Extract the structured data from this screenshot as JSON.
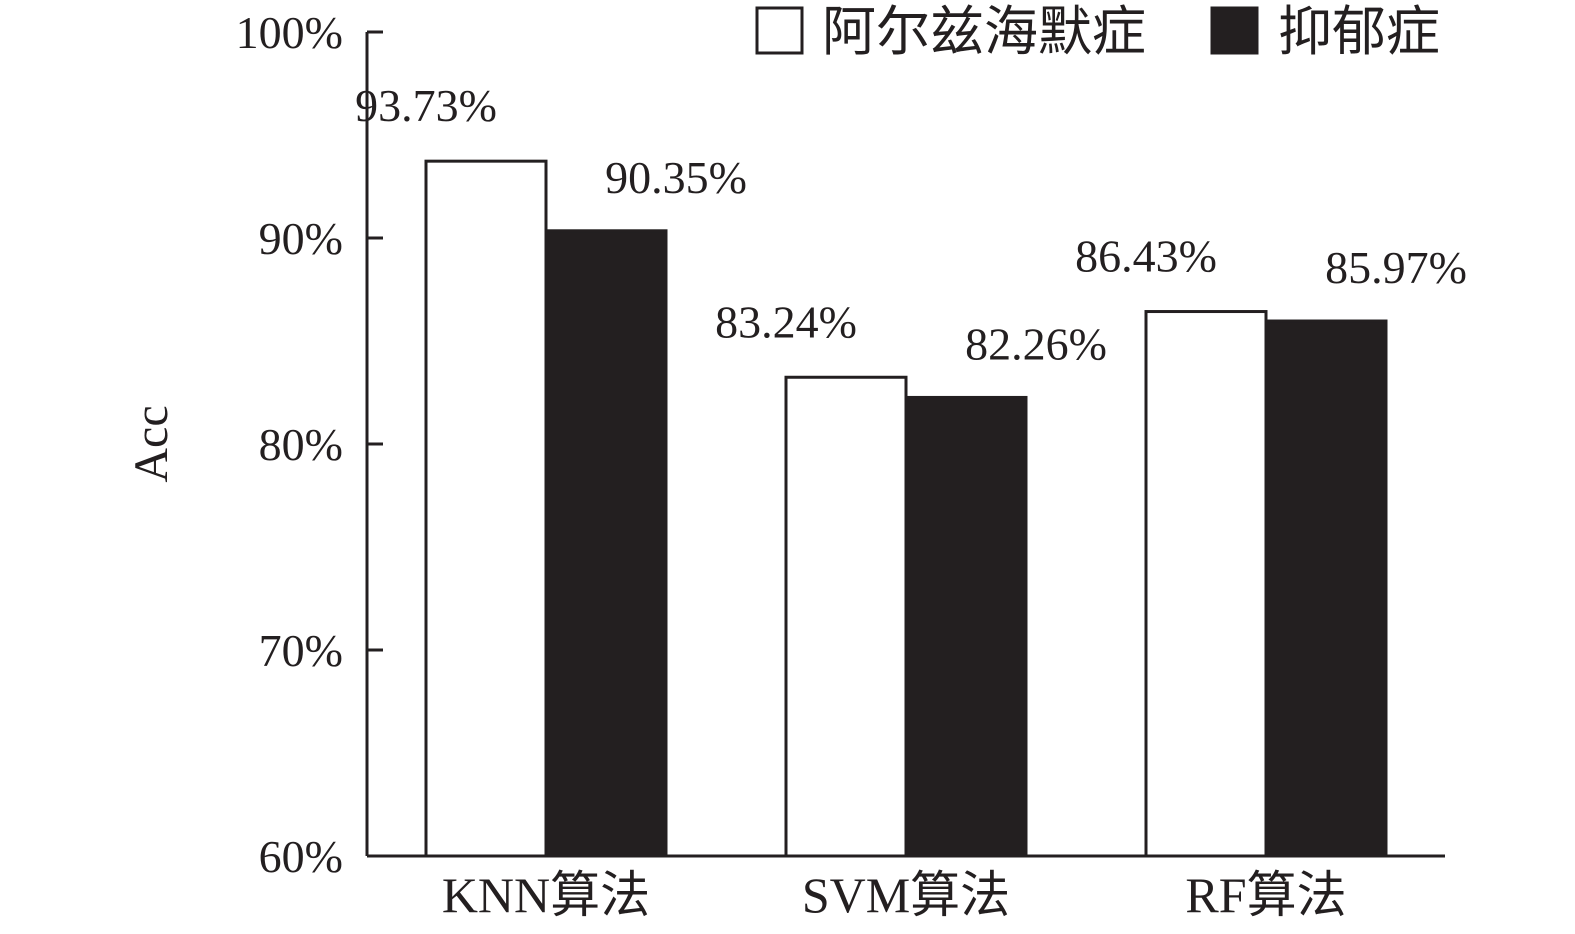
{
  "chart_data": {
    "type": "bar",
    "ylabel": "Acc",
    "ylim": [
      60,
      100
    ],
    "y_ticks": [
      60,
      70,
      80,
      90,
      100
    ],
    "y_tick_labels": [
      "60%",
      "70%",
      "80%",
      "90%",
      "100%"
    ],
    "categories": [
      "KNN算法",
      "SVM算法",
      "RF算法"
    ],
    "series": [
      {
        "name": "阿尔兹海默症",
        "values": [
          93.73,
          83.24,
          86.43
        ],
        "labels": [
          "93.73%",
          "83.24%",
          "86.43%"
        ],
        "fill": "#ffffff"
      },
      {
        "name": "抑郁症",
        "values": [
          90.35,
          82.26,
          85.97
        ],
        "labels": [
          "90.35%",
          "82.26%",
          "85.97%"
        ],
        "fill": "#231f20"
      }
    ],
    "legend_position": "top-right",
    "grid": false,
    "colors": {
      "ink": "#231f20",
      "background": "#ffffff"
    }
  }
}
